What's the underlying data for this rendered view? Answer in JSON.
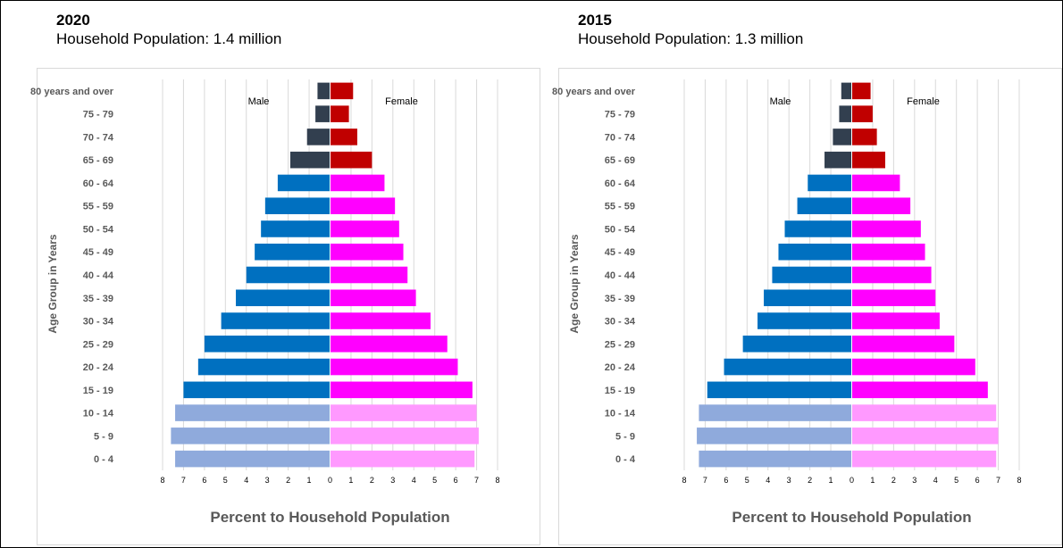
{
  "colors": {
    "male_older": "#323f4f",
    "male_working": "#0070c0",
    "male_young": "#8faadc",
    "female_older": "#c00000",
    "female_working": "#ff00ff",
    "female_young": "#ff99ff",
    "gridline": "#d9d9d9",
    "axis_label": "#595959"
  },
  "chart_data": [
    {
      "type": "bar",
      "orientation": "horizontal",
      "year_label": "2020",
      "title": "Household Population: 1.4 million",
      "xlabel": "Percent to Household Population",
      "ylabel": "Age Group in Years",
      "xlim": [
        -8,
        8
      ],
      "xticks": [
        "8",
        "7",
        "6",
        "5",
        "4",
        "3",
        "2",
        "1",
        "0",
        "1",
        "2",
        "3",
        "4",
        "5",
        "6",
        "7",
        "8"
      ],
      "grid": true,
      "series_labels": {
        "male": "Male",
        "female": "Female"
      },
      "categories": [
        "80 years and over",
        "75 - 79",
        "70 - 74",
        "65 - 69",
        "60 - 64",
        "55 - 59",
        "50 - 54",
        "45 - 49",
        "40 - 44",
        "35 - 39",
        "30 - 34",
        "25 - 29",
        "20 - 24",
        "15 - 19",
        "10 - 14",
        "5 - 9",
        "0 - 4"
      ],
      "male": [
        0.6,
        0.7,
        1.1,
        1.9,
        2.5,
        3.1,
        3.3,
        3.6,
        4.0,
        4.5,
        5.2,
        6.0,
        6.3,
        7.0,
        7.4,
        7.6,
        7.4
      ],
      "female": [
        1.1,
        0.9,
        1.3,
        2.0,
        2.6,
        3.1,
        3.3,
        3.5,
        3.7,
        4.1,
        4.8,
        5.6,
        6.1,
        6.8,
        7.0,
        7.1,
        6.9
      ]
    },
    {
      "type": "bar",
      "orientation": "horizontal",
      "year_label": "2015",
      "title": "Household Population: 1.3 million",
      "xlabel": "Percent to Household Population",
      "ylabel": "Age Group in Years",
      "xlim": [
        -8,
        8
      ],
      "xticks": [
        "8",
        "7",
        "6",
        "5",
        "4",
        "3",
        "2",
        "1",
        "0",
        "1",
        "2",
        "3",
        "4",
        "5",
        "6",
        "7",
        "8"
      ],
      "grid": true,
      "series_labels": {
        "male": "Male",
        "female": "Female"
      },
      "categories": [
        "80 years and over",
        "75 - 79",
        "70 - 74",
        "65 - 69",
        "60 - 64",
        "55 - 59",
        "50 - 54",
        "45 - 49",
        "40 - 44",
        "35 - 39",
        "30 - 34",
        "25 - 29",
        "20 - 24",
        "15 - 19",
        "10 - 14",
        "5 - 9",
        "0 - 4"
      ],
      "male": [
        0.5,
        0.6,
        0.9,
        1.3,
        2.1,
        2.6,
        3.2,
        3.5,
        3.8,
        4.2,
        4.5,
        5.2,
        6.1,
        6.9,
        7.3,
        7.4,
        7.3
      ],
      "female": [
        0.9,
        1.0,
        1.2,
        1.6,
        2.3,
        2.8,
        3.3,
        3.5,
        3.8,
        4.0,
        4.2,
        4.9,
        5.9,
        6.5,
        6.9,
        7.0,
        6.9
      ]
    }
  ]
}
